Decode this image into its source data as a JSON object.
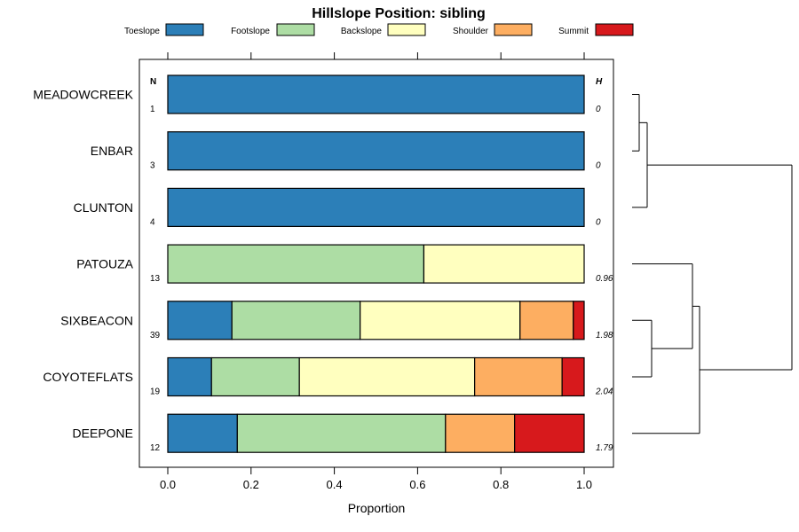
{
  "chart_data": {
    "type": "bar",
    "orientation": "horizontal",
    "stacked": true,
    "title": "Hillslope Position: sibling",
    "xlabel": "Proportion",
    "ylabel": "",
    "xlim": [
      0,
      1
    ],
    "x_ticks": [
      0.0,
      0.2,
      0.4,
      0.6,
      0.8,
      1.0
    ],
    "x_tick_labels": [
      "0.0",
      "0.2",
      "0.4",
      "0.6",
      "0.8",
      "1.0"
    ],
    "legend_position": "top",
    "n_header": "N",
    "h_header": "H",
    "series": [
      {
        "name": "Toeslope",
        "color": "#2c7fb8"
      },
      {
        "name": "Footslope",
        "color": "#addda4"
      },
      {
        "name": "Backslope",
        "color": "#ffffbf"
      },
      {
        "name": "Shoulder",
        "color": "#fdae61"
      },
      {
        "name": "Summit",
        "color": "#d7191c"
      }
    ],
    "categories": [
      {
        "label": "MEADOWCREEK",
        "n": "1",
        "h": "0",
        "values": [
          1.0,
          0,
          0,
          0,
          0
        ]
      },
      {
        "label": "ENBAR",
        "n": "3",
        "h": "0",
        "values": [
          1.0,
          0,
          0,
          0,
          0
        ]
      },
      {
        "label": "CLUNTON",
        "n": "4",
        "h": "0",
        "values": [
          1.0,
          0,
          0,
          0,
          0
        ]
      },
      {
        "label": "PATOUZA",
        "n": "13",
        "h": "0.96",
        "values": [
          0,
          0.615,
          0.385,
          0,
          0
        ]
      },
      {
        "label": "SIXBEACON",
        "n": "39",
        "h": "1.98",
        "values": [
          0.154,
          0.308,
          0.384,
          0.128,
          0.026
        ]
      },
      {
        "label": "COYOTEFLATS",
        "n": "19",
        "h": "2.04",
        "values": [
          0.105,
          0.211,
          0.421,
          0.21,
          0.053
        ]
      },
      {
        "label": "DEEPONE",
        "n": "12",
        "h": "1.79",
        "values": [
          0.167,
          0.5,
          0,
          0.166,
          0.167
        ]
      }
    ],
    "dendrogram": "right"
  }
}
